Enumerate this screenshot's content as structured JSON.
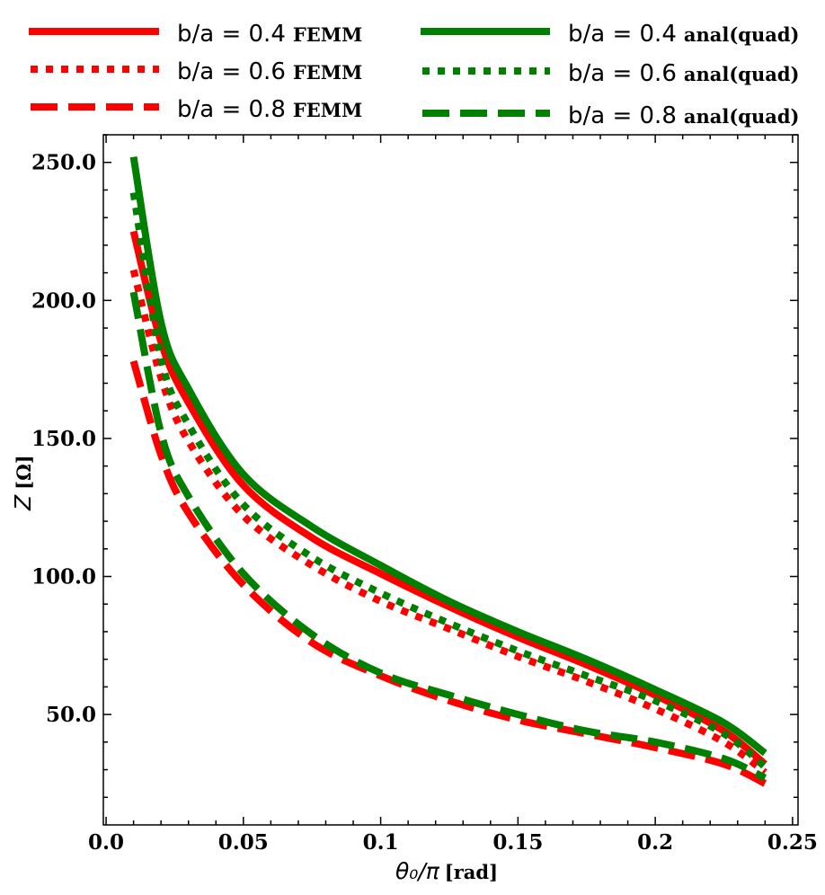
{
  "chart_data": {
    "type": "line",
    "title": "",
    "xlabel_math": "θ₀/π",
    "xlabel_unit": "[rad]",
    "ylabel_math": "Z",
    "ylabel_unit": "[Ω]",
    "xlim": [
      -0.001,
      0.252
    ],
    "ylim": [
      10,
      260
    ],
    "xticks": [
      0.0,
      0.05,
      0.1,
      0.15,
      0.2,
      0.25
    ],
    "xtick_labels": [
      "0.0",
      "0.05",
      "0.1",
      "0.15",
      "0.2",
      "0.25"
    ],
    "yticks": [
      50,
      100,
      150,
      200,
      250
    ],
    "ytick_labels": [
      "50.0",
      "100.0",
      "150.0",
      "200.0",
      "250.0"
    ],
    "legend_position": "top",
    "colors": {
      "FEMM": "#ff0000",
      "anal(quad)": "#008000"
    },
    "x": [
      0.01,
      0.02,
      0.03,
      0.05,
      0.075,
      0.1,
      0.125,
      0.15,
      0.175,
      0.2,
      0.225,
      0.24
    ],
    "series": [
      {
        "name": "b/a = 0.4 FEMM",
        "ratio_label": "b/a = 0.4",
        "source_label": "FEMM",
        "color": "#ff0000",
        "style": "solid",
        "values": [
          225,
          185,
          163,
          133,
          114,
          101,
          89,
          78,
          68,
          57,
          44,
          32
        ]
      },
      {
        "name": "b/a = 0.6 FEMM",
        "ratio_label": "b/a = 0.6",
        "source_label": "FEMM",
        "color": "#ff0000",
        "style": "dotted",
        "values": [
          211,
          172,
          149,
          122,
          104,
          91,
          81,
          71,
          62,
          52,
          40,
          29
        ]
      },
      {
        "name": "b/a = 0.8 FEMM",
        "ratio_label": "b/a = 0.8",
        "source_label": "FEMM",
        "color": "#ff0000",
        "style": "dashed",
        "values": [
          178,
          144,
          123,
          97,
          76,
          64,
          55,
          48,
          43,
          38,
          32,
          25
        ]
      },
      {
        "name": "b/a = 0.4 anal(quad)",
        "ratio_label": "b/a = 0.4",
        "source_label": "anal(quad)",
        "color": "#008000",
        "style": "solid",
        "values": [
          252,
          192,
          168,
          137,
          118,
          104,
          91,
          80,
          70,
          59,
          47,
          36
        ]
      },
      {
        "name": "b/a = 0.6 anal(quad)",
        "ratio_label": "b/a = 0.6",
        "source_label": "anal(quad)",
        "color": "#008000",
        "style": "dotted",
        "values": [
          239,
          179,
          155,
          126,
          107,
          94,
          83,
          73,
          64,
          55,
          43,
          31
        ]
      },
      {
        "name": "b/a = 0.8 anal(quad)",
        "ratio_label": "b/a = 0.8",
        "source_label": "anal(quad)",
        "color": "#008000",
        "style": "dashed",
        "values": [
          203,
          152,
          129,
          101,
          79,
          65,
          57,
          50,
          44,
          40,
          34,
          27
        ]
      }
    ]
  }
}
